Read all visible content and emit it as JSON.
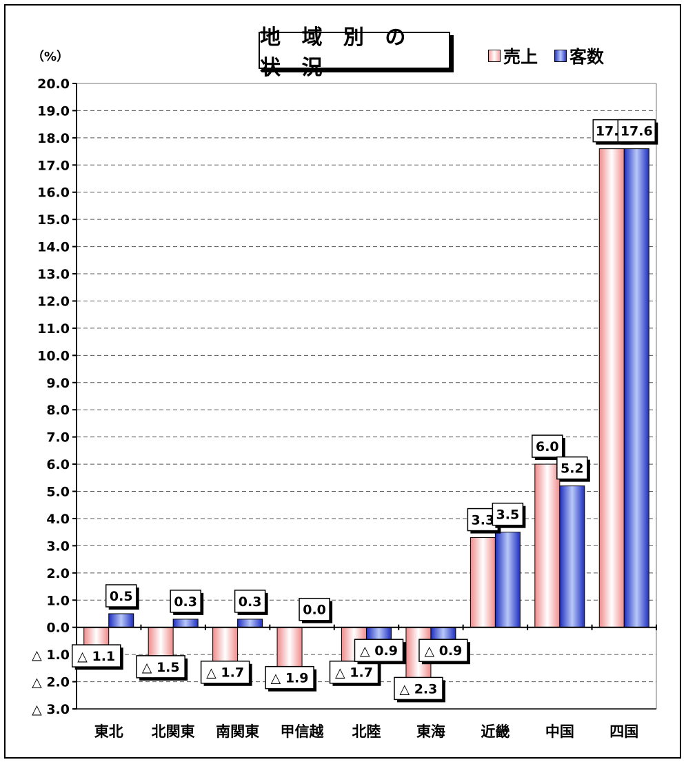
{
  "chart_data": {
    "type": "bar",
    "title": "地 域 別 の 状 況",
    "unit_label": "（%）",
    "categories": [
      "東北",
      "北関東",
      "南関東",
      "甲信越",
      "北陸",
      "東海",
      "近畿",
      "中国",
      "四国"
    ],
    "series": [
      {
        "name": "売上",
        "values": [
          -1.1,
          -1.5,
          -1.7,
          -1.9,
          -1.7,
          -2.3,
          3.3,
          6.0,
          17.6
        ],
        "labels": [
          "△ 1.1",
          "△ 1.5",
          "△ 1.7",
          "△ 1.9",
          "△ 1.7",
          "△ 2.3",
          "3.3",
          "6.0",
          "17.6"
        ],
        "color": "#f4a0a0"
      },
      {
        "name": "客数",
        "values": [
          0.5,
          0.3,
          0.3,
          0.0,
          -0.9,
          -0.9,
          3.5,
          5.2,
          17.6
        ],
        "labels": [
          "0.5",
          "0.3",
          "0.3",
          "0.0",
          "△ 0.9",
          "△ 0.9",
          "3.5",
          "5.2",
          "17.6"
        ],
        "color": "#2838c8"
      }
    ],
    "ylim": [
      -3.0,
      20.0
    ],
    "yticks": [
      20.0,
      19.0,
      18.0,
      17.0,
      16.0,
      15.0,
      14.0,
      13.0,
      12.0,
      11.0,
      10.0,
      9.0,
      8.0,
      7.0,
      6.0,
      5.0,
      4.0,
      3.0,
      2.0,
      1.0,
      0.0,
      -1.0,
      -2.0,
      -3.0
    ],
    "ytick_labels": [
      "20.0",
      "19.0",
      "18.0",
      "17.0",
      "16.0",
      "15.0",
      "14.0",
      "13.0",
      "12.0",
      "11.0",
      "10.0",
      "9.0",
      "8.0",
      "7.0",
      "6.0",
      "5.0",
      "4.0",
      "3.0",
      "2.0",
      "1.0",
      "0.0",
      "△ 1.0",
      "△ 2.0",
      "△ 3.0"
    ],
    "grid": true,
    "legend_position": "top-right"
  }
}
